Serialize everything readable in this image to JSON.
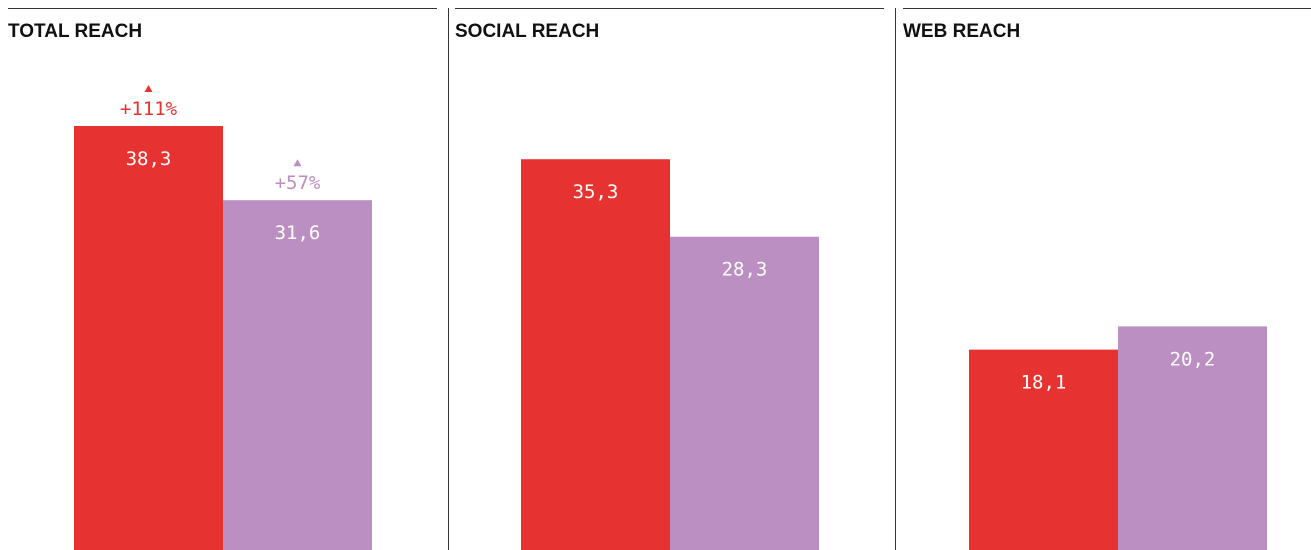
{
  "chart_data": [
    {
      "type": "bar",
      "title": "TOTAL REACH",
      "values": [
        38.3,
        31.6
      ],
      "value_labels": [
        "38,3",
        "31,6"
      ],
      "colors": [
        "#e63331",
        "#bb8fc1"
      ],
      "change_labels": [
        "+111%",
        "+57%"
      ]
    },
    {
      "type": "bar",
      "title": "SOCIAL REACH",
      "values": [
        35.3,
        28.3
      ],
      "value_labels": [
        "35,3",
        "28,3"
      ],
      "colors": [
        "#e63331",
        "#bb8fc1"
      ]
    },
    {
      "type": "bar",
      "title": "WEB REACH",
      "values": [
        18.1,
        20.2
      ],
      "value_labels": [
        "18,1",
        "20,2"
      ],
      "colors": [
        "#e63331",
        "#bb8fc1"
      ]
    }
  ]
}
